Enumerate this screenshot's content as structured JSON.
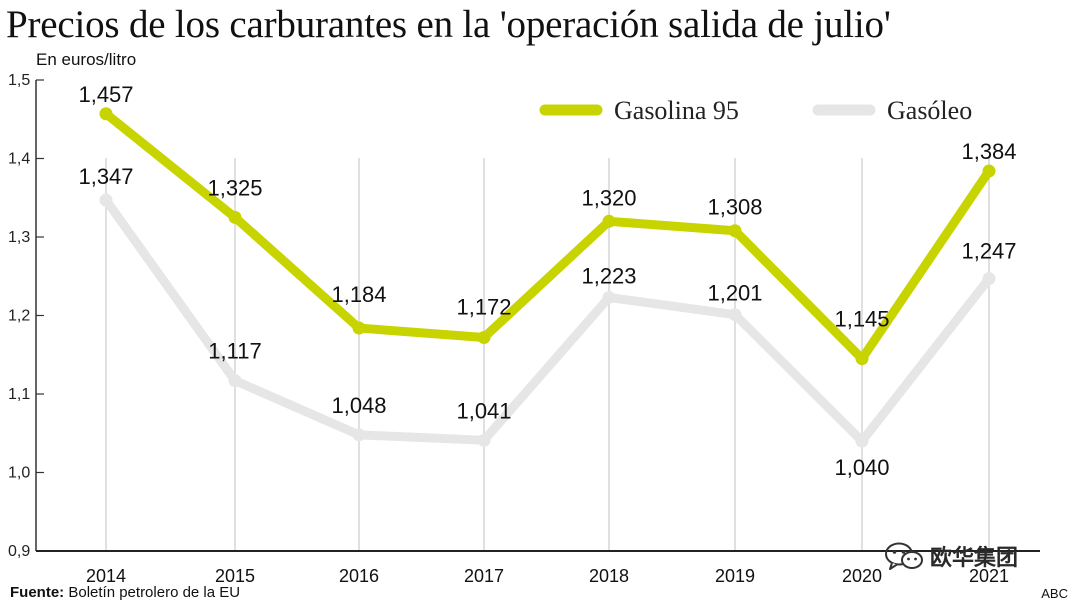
{
  "chart_data": {
    "type": "line",
    "title": "Precios de los carburantes en la 'operación salida de julio'",
    "ylabel": "En euros/litro",
    "xlabel": "",
    "categories": [
      "2014",
      "2015",
      "2016",
      "2017",
      "2018",
      "2019",
      "2020",
      "2021"
    ],
    "ylim": [
      0.9,
      1.5
    ],
    "yticks": [
      0.9,
      1.0,
      1.1,
      1.2,
      1.3,
      1.4,
      1.5
    ],
    "ytick_labels": [
      "0,9",
      "1,0",
      "1,1",
      "1,2",
      "1,3",
      "1,4",
      "1,5"
    ],
    "grid": "vertical",
    "legend_position": "top-right",
    "series": [
      {
        "name": "Gasolina 95",
        "color": "#c8d400",
        "values": [
          1.457,
          1.325,
          1.184,
          1.172,
          1.32,
          1.308,
          1.145,
          1.384
        ],
        "labels": [
          "1,457",
          "1,325",
          "1,184",
          "1,172",
          "1,320",
          "1,308",
          "1,145",
          "1,384"
        ]
      },
      {
        "name": "Gasóleo",
        "color": "#e6e6e6",
        "values": [
          1.347,
          1.117,
          1.048,
          1.041,
          1.223,
          1.201,
          1.04,
          1.247
        ],
        "labels": [
          "1,347",
          "1,117",
          "1,048",
          "1,041",
          "1,223",
          "1,201",
          "1,040",
          "1,247"
        ]
      }
    ]
  },
  "footer": {
    "source_label": "Fuente:",
    "source_text": "Boletín petrolero de la EU",
    "credit": "ABC"
  },
  "watermark": {
    "text": "欧华集团",
    "icon": "wechat-icon"
  }
}
